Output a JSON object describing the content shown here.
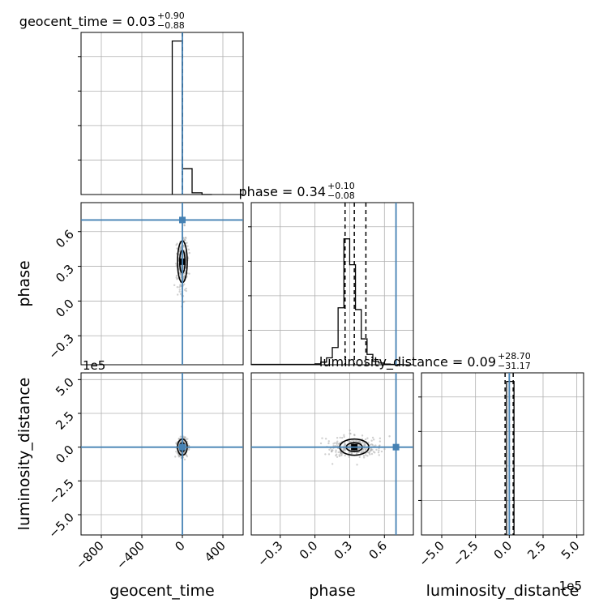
{
  "chart_data": {
    "type": "corner",
    "parameters": [
      "geocent_time",
      "phase",
      "luminosity_distance"
    ],
    "titles": [
      {
        "param": "geocent_time",
        "text": "geocent_time = 0.03",
        "upper": "+0.90",
        "lower": "−0.88"
      },
      {
        "param": "phase",
        "text": "phase = 0.34",
        "upper": "+0.10",
        "lower": "−0.08"
      },
      {
        "param": "luminosity_distance",
        "text": "luminosity_distance = 0.09",
        "upper": "+28.70",
        "lower": "−31.17"
      }
    ],
    "axis_labels": {
      "x": [
        "geocent_time",
        "phase",
        "luminosity_distance"
      ],
      "y": [
        "phase",
        "luminosity_distance"
      ]
    },
    "axes": {
      "geocent_time": {
        "range": [
          -1000,
          600
        ],
        "ticks": [
          -800,
          -400,
          0,
          400
        ],
        "tick_labels": [
          "−800",
          "−400",
          "0",
          "400"
        ]
      },
      "phase": {
        "range": [
          -0.55,
          0.85
        ],
        "ticks": [
          -0.3,
          0.0,
          0.3,
          0.6
        ],
        "tick_labels": [
          "−0.3",
          "0.0",
          "0.3",
          "0.6"
        ]
      },
      "luminosity_distance": {
        "range": [
          -6.5,
          5.5
        ],
        "ticks": [
          -5.0,
          -2.5,
          0.0,
          2.5,
          5.0
        ],
        "tick_labels": [
          "−5.0",
          "−2.5",
          "0.0",
          "2.5",
          "5.0"
        ],
        "offset_label": "1e5"
      }
    },
    "histograms": {
      "geocent_time": {
        "bin_edges": [
          -100,
          -2,
          96,
          194,
          292
        ],
        "counts": [
          0.89,
          0.15,
          0.01,
          0
        ]
      },
      "phase": {
        "bin_edges": [
          -0.55,
          0.0,
          0.05,
          0.1,
          0.15,
          0.2,
          0.25,
          0.3,
          0.35,
          0.4,
          0.45,
          0.5,
          0.55,
          0.6,
          0.65,
          0.7,
          0.75,
          0.8
        ],
        "counts": [
          0.002,
          0.005,
          0.015,
          0.04,
          0.1,
          0.33,
          0.73,
          0.58,
          0.32,
          0.15,
          0.06,
          0.02,
          0.01,
          0.004,
          0.002,
          0.001,
          0
        ]
      },
      "luminosity_distance": {
        "bin_edges": [
          -0.2,
          0.35
        ],
        "counts": [
          0.89
        ]
      }
    },
    "quantiles": {
      "geocent_time": [
        -0.85,
        0.03,
        0.93
      ],
      "phase": [
        0.26,
        0.34,
        0.44
      ],
      "luminosity_distance": [
        -0.31,
        0.0009,
        0.29
      ]
    },
    "truths": {
      "geocent_time": 0.0,
      "phase": 0.7,
      "luminosity_distance": 0.0
    },
    "truth_color": "#4682b4",
    "grid": true
  }
}
